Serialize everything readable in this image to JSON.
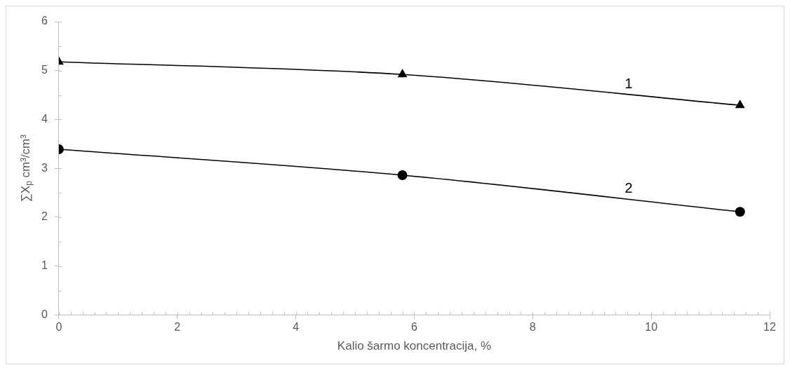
{
  "chart_data": {
    "type": "line",
    "xlabel": "Kalio šarmo koncentracija, %",
    "ylabel": "∑X$_{p}$ cm³/cm³",
    "xlim": [
      0,
      12
    ],
    "xticks": [
      0,
      2,
      4,
      6,
      8,
      10,
      12
    ],
    "ylim": [
      0,
      6
    ],
    "yticks": [
      0,
      1,
      2,
      3,
      4,
      5,
      6
    ],
    "grid": false,
    "legend": false,
    "series": [
      {
        "name": "1",
        "color": "#000000",
        "marker": "triangle",
        "x": [
          0,
          5.8,
          11.5
        ],
        "values": [
          5.18,
          4.92,
          4.29
        ]
      },
      {
        "name": "2",
        "color": "#000000",
        "marker": "circle",
        "x": [
          0,
          5.8,
          11.5
        ],
        "values": [
          3.39,
          2.86,
          2.11
        ]
      }
    ]
  }
}
